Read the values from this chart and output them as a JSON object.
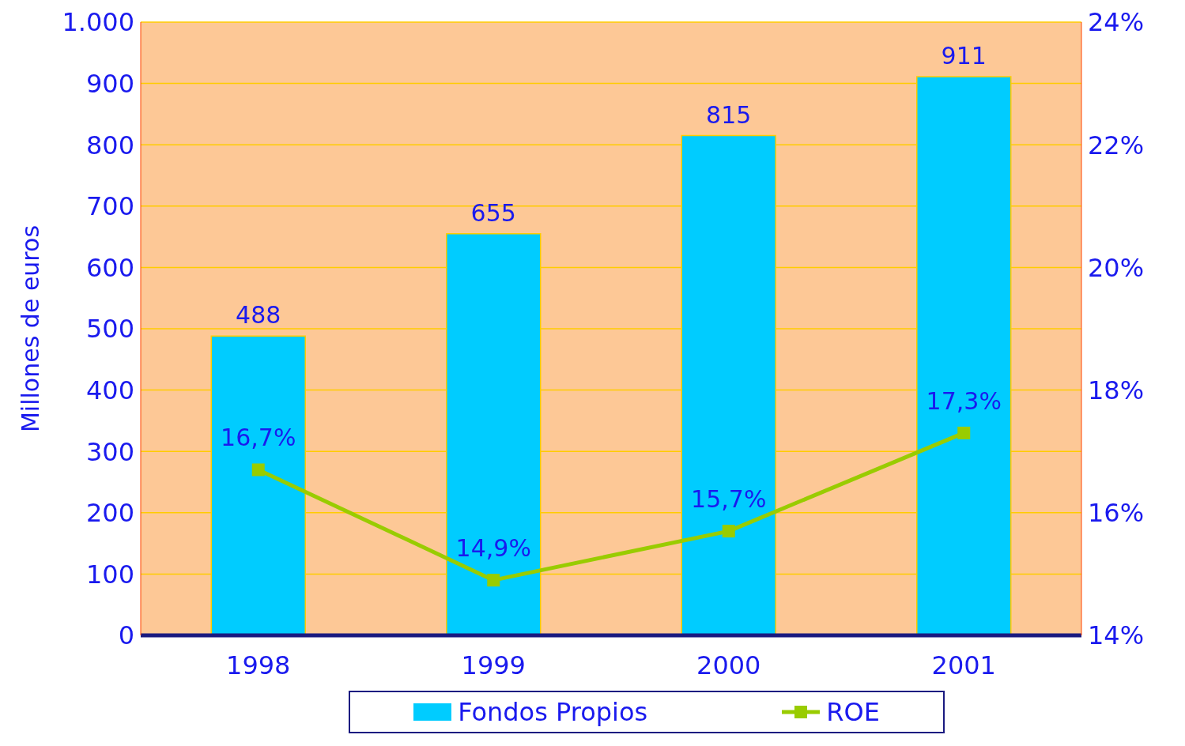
{
  "chart_data": {
    "type": "bar",
    "ylabel": "Millones de euros",
    "categories": [
      "1998",
      "1999",
      "2000",
      "2001"
    ],
    "series": [
      {
        "name": "Fondos Propios",
        "color": "#00ccff",
        "values": [
          488,
          655,
          815,
          911
        ],
        "value_labels": [
          "488",
          "655",
          "815",
          "911"
        ]
      },
      {
        "name": "ROE",
        "type": "line",
        "axis": "y2",
        "color": "#99cc00",
        "values": [
          16.7,
          14.9,
          15.7,
          17.3
        ],
        "value_labels": [
          "16,7%",
          "14,9%",
          "15,7%",
          "17,3%"
        ],
        "marker": "square"
      }
    ],
    "ylim": [
      0,
      1000
    ],
    "yticks": [
      0,
      100,
      200,
      300,
      400,
      500,
      600,
      700,
      800,
      900,
      {
        "value": 1000,
        "label": "1.000"
      }
    ],
    "y2lim": [
      14,
      24
    ],
    "y2ticks": [
      {
        "value": 14,
        "label": "14%"
      },
      {
        "value": 16,
        "label": "16%"
      },
      {
        "value": 18,
        "label": "18%"
      },
      {
        "value": 20,
        "label": "20%"
      },
      {
        "value": 22,
        "label": "22%"
      },
      {
        "value": 24,
        "label": "24%"
      }
    ],
    "grid": "y",
    "legend": "bottom"
  }
}
